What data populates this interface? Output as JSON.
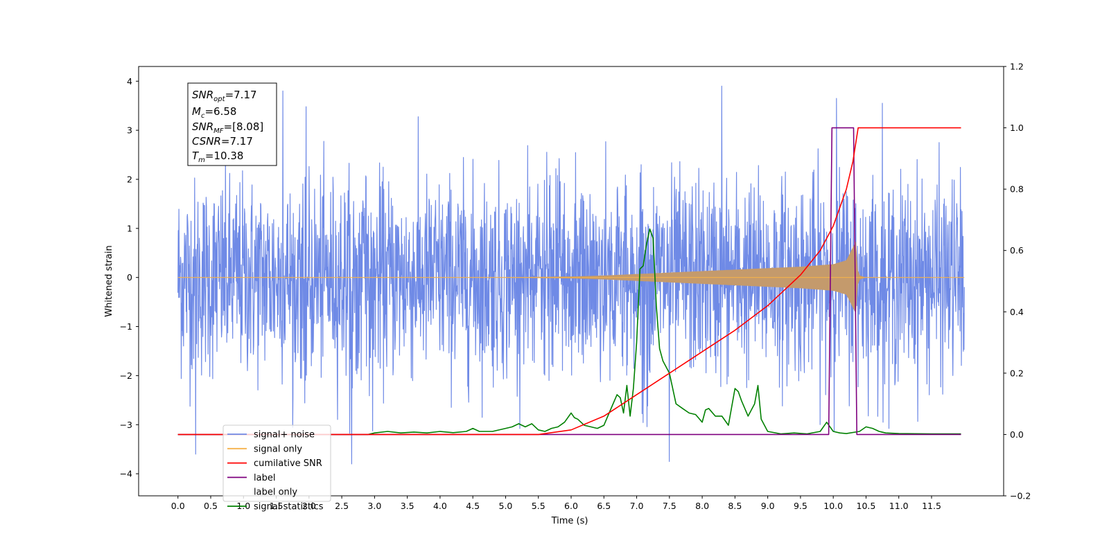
{
  "colors": {
    "noise": "#6f8ae6",
    "signal": "#f5b24a",
    "signal_fill": "#c49a6c",
    "cumulative_snr": "#ff0000",
    "label": "#7f007f",
    "statistics": "#008000"
  },
  "chart_data": {
    "type": "line",
    "xlabel": "Time (s)",
    "ylabel": "Whitened strain",
    "xlim": [
      -0.6,
      12.6
    ],
    "ylim": [
      -4.45,
      4.3
    ],
    "y2lim": [
      -0.2,
      1.2
    ],
    "grid": false,
    "legend_position": "lower-left",
    "x_ticks": [
      "0.0",
      "0.5",
      "1.0",
      "1.5",
      "2.0",
      "2.5",
      "3.0",
      "3.5",
      "4.0",
      "4.5",
      "5.0",
      "5.5",
      "6.0",
      "6.5",
      "7.0",
      "7.5",
      "8.0",
      "8.5",
      "9.0",
      "9.5",
      "10.0",
      "10.5",
      "11.0",
      "11.5"
    ],
    "y_ticks": [
      "−4",
      "−3",
      "−2",
      "−1",
      "0",
      "1",
      "2",
      "3",
      "4"
    ],
    "y2_ticks": [
      "−0.2",
      "0.0",
      "0.2",
      "0.4",
      "0.6",
      "0.8",
      "1.0",
      "1.2"
    ],
    "annotation": {
      "snr_opt": "=7.17",
      "mc": "=6.58",
      "snr_mf": "=[8.08]",
      "csnr": "=7.17",
      "tm": "=10.38"
    },
    "series": [
      {
        "name": "signal+ noise",
        "axis": "left",
        "kind": "noise",
        "t_start": 0.0,
        "t_end": 12.0,
        "amplitude_range": [
          -3.6,
          3.9
        ],
        "extremes": [
          {
            "x": 1.6,
            "y": 3.8
          },
          {
            "x": 8.3,
            "y": 3.9
          },
          {
            "x": 0.27,
            "y": -3.6
          },
          {
            "x": 2.65,
            "y": -3.8
          },
          {
            "x": 7.5,
            "y": -3.75
          },
          {
            "x": 10.05,
            "y": 3.65
          },
          {
            "x": 10.75,
            "y": 3.55
          }
        ]
      },
      {
        "name": "signal only",
        "axis": "left",
        "kind": "chirp_envelope",
        "t_start": 0.0,
        "t_end": 12.0,
        "merger_time": 10.38,
        "envelope": [
          {
            "x": 0.0,
            "y": 0.0
          },
          {
            "x": 5.0,
            "y": 0.005
          },
          {
            "x": 6.0,
            "y": 0.02
          },
          {
            "x": 6.5,
            "y": 0.04
          },
          {
            "x": 7.0,
            "y": 0.07
          },
          {
            "x": 7.5,
            "y": 0.1
          },
          {
            "x": 8.0,
            "y": 0.13
          },
          {
            "x": 8.5,
            "y": 0.16
          },
          {
            "x": 9.0,
            "y": 0.19
          },
          {
            "x": 9.5,
            "y": 0.22
          },
          {
            "x": 10.0,
            "y": 0.27
          },
          {
            "x": 10.2,
            "y": 0.35
          },
          {
            "x": 10.35,
            "y": 0.75
          },
          {
            "x": 10.38,
            "y": 0.05
          },
          {
            "x": 10.5,
            "y": 0.0
          },
          {
            "x": 12.0,
            "y": 0.0
          }
        ]
      },
      {
        "name": "cumilative SNR",
        "axis": "right",
        "x": [
          0.0,
          5.5,
          6.0,
          6.5,
          7.0,
          7.5,
          8.0,
          8.5,
          9.0,
          9.5,
          9.8,
          10.0,
          10.2,
          10.3,
          10.38,
          10.5,
          11.0,
          11.5,
          11.95
        ],
        "y": [
          0.0,
          0.0,
          0.015,
          0.06,
          0.13,
          0.2,
          0.27,
          0.34,
          0.42,
          0.52,
          0.6,
          0.68,
          0.8,
          0.89,
          1.0,
          1.0,
          1.0,
          1.0,
          1.0
        ]
      },
      {
        "name": "label",
        "axis": "right",
        "x": [
          0.0,
          9.93,
          9.98,
          10.31,
          10.36,
          11.95
        ],
        "y": [
          0.0,
          0.0,
          1.0,
          1.0,
          0.0,
          0.0
        ]
      },
      {
        "name": "label only",
        "axis": "right",
        "x": [],
        "y": []
      },
      {
        "name": "signal statistics",
        "axis": "right",
        "x": [
          0.0,
          2.9,
          3.0,
          3.2,
          3.4,
          3.6,
          3.8,
          4.0,
          4.2,
          4.4,
          4.5,
          4.6,
          4.8,
          5.0,
          5.1,
          5.2,
          5.3,
          5.4,
          5.5,
          5.6,
          5.7,
          5.8,
          5.9,
          6.0,
          6.05,
          6.1,
          6.2,
          6.3,
          6.4,
          6.5,
          6.6,
          6.7,
          6.75,
          6.8,
          6.85,
          6.9,
          6.95,
          7.0,
          7.05,
          7.1,
          7.15,
          7.2,
          7.25,
          7.3,
          7.35,
          7.4,
          7.5,
          7.6,
          7.7,
          7.8,
          7.9,
          8.0,
          8.05,
          8.1,
          8.2,
          8.3,
          8.4,
          8.5,
          8.55,
          8.6,
          8.7,
          8.75,
          8.8,
          8.85,
          8.9,
          9.0,
          9.2,
          9.4,
          9.6,
          9.8,
          9.9,
          10.0,
          10.1,
          10.2,
          10.4,
          10.5,
          10.6,
          10.7,
          10.8,
          11.0,
          11.5,
          11.95
        ],
        "y": [
          0.0,
          0.0,
          0.005,
          0.01,
          0.005,
          0.008,
          0.005,
          0.01,
          0.006,
          0.01,
          0.02,
          0.01,
          0.01,
          0.02,
          0.025,
          0.035,
          0.025,
          0.035,
          0.015,
          0.01,
          0.02,
          0.025,
          0.04,
          0.07,
          0.055,
          0.05,
          0.03,
          0.025,
          0.02,
          0.03,
          0.08,
          0.13,
          0.12,
          0.07,
          0.16,
          0.06,
          0.15,
          0.3,
          0.54,
          0.55,
          0.62,
          0.67,
          0.64,
          0.42,
          0.28,
          0.24,
          0.2,
          0.1,
          0.085,
          0.07,
          0.065,
          0.04,
          0.08,
          0.085,
          0.06,
          0.06,
          0.03,
          0.15,
          0.14,
          0.11,
          0.06,
          0.08,
          0.1,
          0.16,
          0.05,
          0.01,
          0.002,
          0.005,
          0.002,
          0.01,
          0.04,
          0.01,
          0.005,
          0.003,
          0.01,
          0.025,
          0.02,
          0.01,
          0.005,
          0.003,
          0.002,
          0.002
        ]
      }
    ]
  }
}
